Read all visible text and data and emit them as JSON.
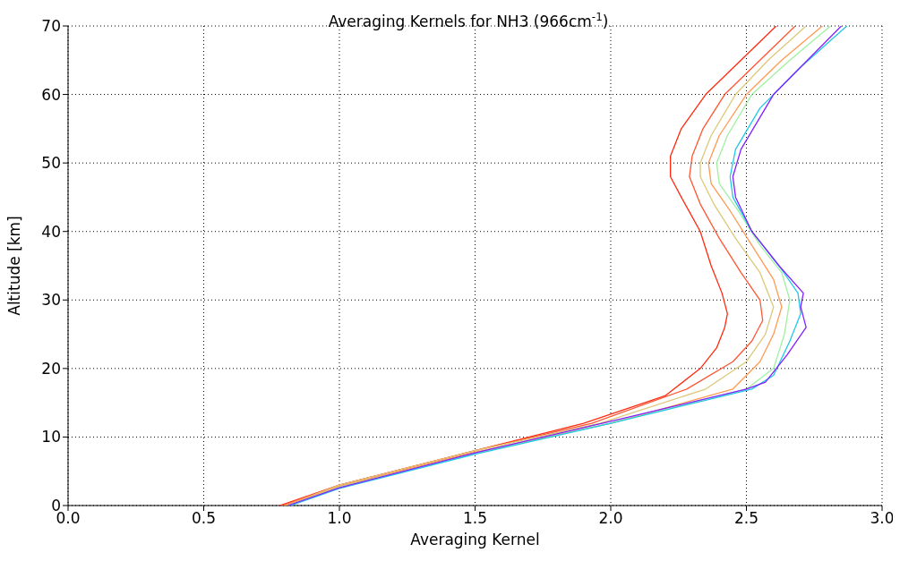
{
  "chart_data": {
    "type": "line",
    "title": "Averaging Kernels for NH3 (966cm$^{-1}$)",
    "xlabel": "Averaging Kernel",
    "ylabel": "Altitude [km]",
    "xlim": [
      0,
      3
    ],
    "xticks": [
      {
        "value": 0,
        "label": "0.0"
      },
      {
        "value": 0.5,
        "label": "0.5"
      },
      {
        "value": 1,
        "label": "1.0"
      },
      {
        "value": 1.5,
        "label": "1.5"
      },
      {
        "value": 2,
        "label": "2.0"
      },
      {
        "value": 2.5,
        "label": "2.5"
      },
      {
        "value": 3,
        "label": "3.0"
      }
    ],
    "ylim": [
      0,
      70
    ],
    "yticks": [
      0,
      10,
      20,
      30,
      40,
      50,
      60,
      70
    ],
    "grid": true,
    "series": [
      {
        "color": "#ff2a10",
        "x": [
          0.78,
          1.0,
          1.5,
          1.9,
          2.2,
          2.33,
          2.39,
          2.42,
          2.43,
          2.41,
          2.37,
          2.33,
          2.26,
          2.22,
          2.22,
          2.26,
          2.35,
          2.48,
          2.61
        ],
        "values": [
          0,
          3,
          8,
          12,
          16,
          20,
          23,
          26,
          28,
          31,
          35,
          40,
          45,
          48,
          51,
          55,
          60,
          65,
          70
        ]
      },
      {
        "color": "#ff5530",
        "x": [
          0.79,
          1.0,
          1.5,
          1.93,
          2.28,
          2.45,
          2.52,
          2.56,
          2.55,
          2.48,
          2.4,
          2.33,
          2.29,
          2.3,
          2.34,
          2.42,
          2.55,
          2.68
        ],
        "values": [
          0,
          3,
          8,
          12,
          17,
          21,
          24,
          27,
          30,
          34,
          39,
          44,
          48,
          51,
          55,
          60,
          65,
          70
        ]
      },
      {
        "color": "#dcc878",
        "x": [
          0.8,
          1.0,
          1.5,
          1.96,
          2.35,
          2.5,
          2.57,
          2.6,
          2.55,
          2.46,
          2.38,
          2.33,
          2.33,
          2.37,
          2.46,
          2.58,
          2.72
        ],
        "values": [
          0,
          3,
          8,
          12,
          17,
          21,
          25,
          29,
          34,
          39,
          44,
          48,
          50,
          54,
          60,
          65,
          70
        ]
      },
      {
        "color": "#ff9a50",
        "x": [
          0.8,
          1.0,
          1.5,
          2.0,
          2.45,
          2.55,
          2.6,
          2.63,
          2.6,
          2.52,
          2.44,
          2.37,
          2.36,
          2.4,
          2.5,
          2.63,
          2.78
        ],
        "values": [
          0,
          2.8,
          7.8,
          12,
          17,
          21,
          25,
          29,
          33,
          38,
          43,
          47,
          50,
          54,
          60,
          65,
          70
        ]
      },
      {
        "color": "#a0f0a0",
        "x": [
          0.81,
          1.0,
          1.5,
          2.0,
          2.5,
          2.6,
          2.64,
          2.66,
          2.63,
          2.55,
          2.47,
          2.4,
          2.39,
          2.43,
          2.52,
          2.66,
          2.81
        ],
        "values": [
          0,
          2.7,
          7.6,
          12,
          17,
          20,
          25,
          30,
          34,
          38,
          43,
          47,
          50,
          54,
          60,
          65,
          70
        ]
      },
      {
        "color": "#20c8e8",
        "x": [
          0.82,
          1.0,
          1.5,
          2.0,
          2.52,
          2.6,
          2.66,
          2.7,
          2.69,
          2.62,
          2.52,
          2.45,
          2.44,
          2.46,
          2.55,
          2.7,
          2.87
        ],
        "values": [
          0,
          2.5,
          7.5,
          12,
          17,
          19,
          24,
          28,
          31,
          35,
          40,
          45,
          48,
          52,
          58,
          64,
          70
        ]
      },
      {
        "color": "#8020ff",
        "x": [
          0.81,
          1.0,
          1.5,
          2.0,
          2.5,
          2.57,
          2.65,
          2.72,
          2.7,
          2.71,
          2.62,
          2.52,
          2.46,
          2.45,
          2.48,
          2.6,
          2.85
        ],
        "values": [
          0,
          2.6,
          7.7,
          12.3,
          17,
          18,
          22,
          26,
          29,
          31,
          35,
          40,
          45,
          48,
          52,
          60,
          70
        ]
      }
    ]
  }
}
